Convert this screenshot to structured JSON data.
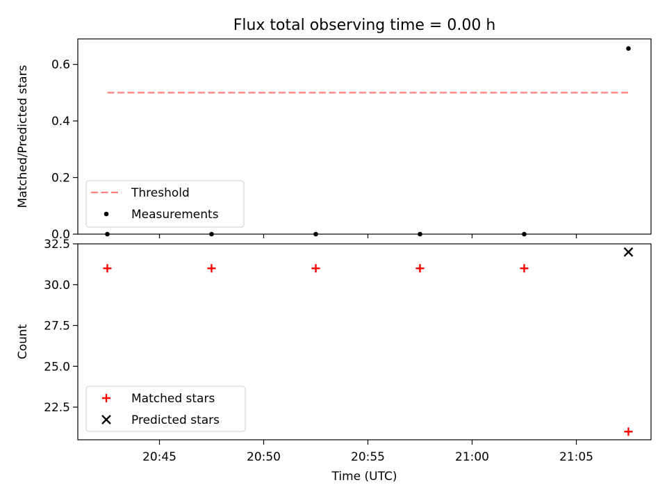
{
  "title": "Flux total observing time = 0.00 h",
  "chart_data": [
    {
      "type": "scatter",
      "panel": "top",
      "ylabel": "Matched/Predicted stars",
      "ylim": [
        0,
        0.69
      ],
      "yticks": [
        0.0,
        0.2,
        0.4,
        0.6
      ],
      "ytick_labels": [
        "0.0",
        "0.2",
        "0.4",
        "0.6"
      ],
      "series": [
        {
          "name": "Threshold",
          "kind": "line",
          "style": "dashed",
          "color": "#ff7f7f",
          "x": [
            "20:42:30",
            "21:07:30"
          ],
          "y": [
            0.5,
            0.5
          ]
        },
        {
          "name": "Measurements",
          "kind": "scatter",
          "marker": "dot",
          "color": "#000000",
          "x": [
            "20:42:30",
            "20:47:30",
            "20:52:30",
            "20:57:30",
            "21:02:30",
            "21:07:30"
          ],
          "y": [
            0.0,
            0.0,
            0.0,
            0.0,
            0.0,
            0.656
          ]
        }
      ],
      "legend": "lower-left"
    },
    {
      "type": "scatter",
      "panel": "bottom",
      "xlabel": "Time (UTC)",
      "ylabel": "Count",
      "ylim": [
        20.5,
        32.5
      ],
      "yticks": [
        22.5,
        25.0,
        27.5,
        30.0,
        32.5
      ],
      "ytick_labels": [
        "22.5",
        "25.0",
        "27.5",
        "30.0",
        "32.5"
      ],
      "xlim": [
        "20:41:05",
        "21:08:35"
      ],
      "xticks": [
        "20:45",
        "20:50",
        "20:55",
        "21:00",
        "21:05"
      ],
      "series": [
        {
          "name": "Matched stars",
          "kind": "scatter",
          "marker": "plus",
          "color": "#ff0000",
          "x": [
            "20:42:30",
            "20:47:30",
            "20:52:30",
            "20:57:30",
            "21:02:30",
            "21:07:30"
          ],
          "y": [
            31,
            31,
            31,
            31,
            31,
            21
          ]
        },
        {
          "name": "Predicted stars",
          "kind": "scatter",
          "marker": "x",
          "color": "#000000",
          "x": [
            "21:07:30"
          ],
          "y": [
            32
          ]
        }
      ],
      "legend": "lower-left"
    }
  ]
}
